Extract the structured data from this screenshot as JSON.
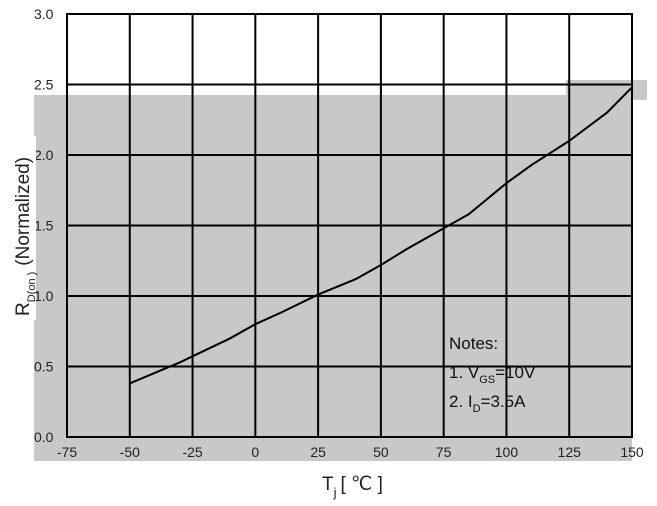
{
  "chart_data": {
    "type": "line",
    "title": "",
    "xlabel": {
      "main": "T",
      "sub": "j",
      "unit": "[ ℃ ]"
    },
    "ylabel": {
      "main": "R",
      "sub": "D(on )",
      "unit": "(Normalized)"
    },
    "xlim": [
      -75,
      150
    ],
    "ylim": [
      0.0,
      3.0
    ],
    "x_ticks": [
      "-75",
      "-50",
      "-25",
      "0",
      "25",
      "50",
      "75",
      "100",
      "125",
      "150"
    ],
    "y_ticks": [
      "0.0",
      "0.5",
      "1.0",
      "1.5",
      "2.0",
      "2.5",
      "3.0"
    ],
    "grid": true,
    "series": [
      {
        "x": [
          -50,
          -30,
          -10,
          0,
          10,
          25,
          40,
          50,
          60,
          75,
          85,
          100,
          110,
          125,
          140,
          150
        ],
        "y": [
          0.38,
          0.53,
          0.7,
          0.8,
          0.88,
          1.01,
          1.12,
          1.22,
          1.33,
          1.48,
          1.58,
          1.8,
          1.93,
          2.1,
          2.3,
          2.48
        ],
        "color": "#000000"
      }
    ],
    "background_color": "#c8c8c8",
    "notes": {
      "title": "Notes",
      "title_colon": ":",
      "line1": {
        "prefix": "1. V",
        "sub": "GS",
        "suffix": "=10V"
      },
      "line2": {
        "prefix": "2. I",
        "sub": "D",
        "suffix": "=3.5A"
      }
    }
  }
}
